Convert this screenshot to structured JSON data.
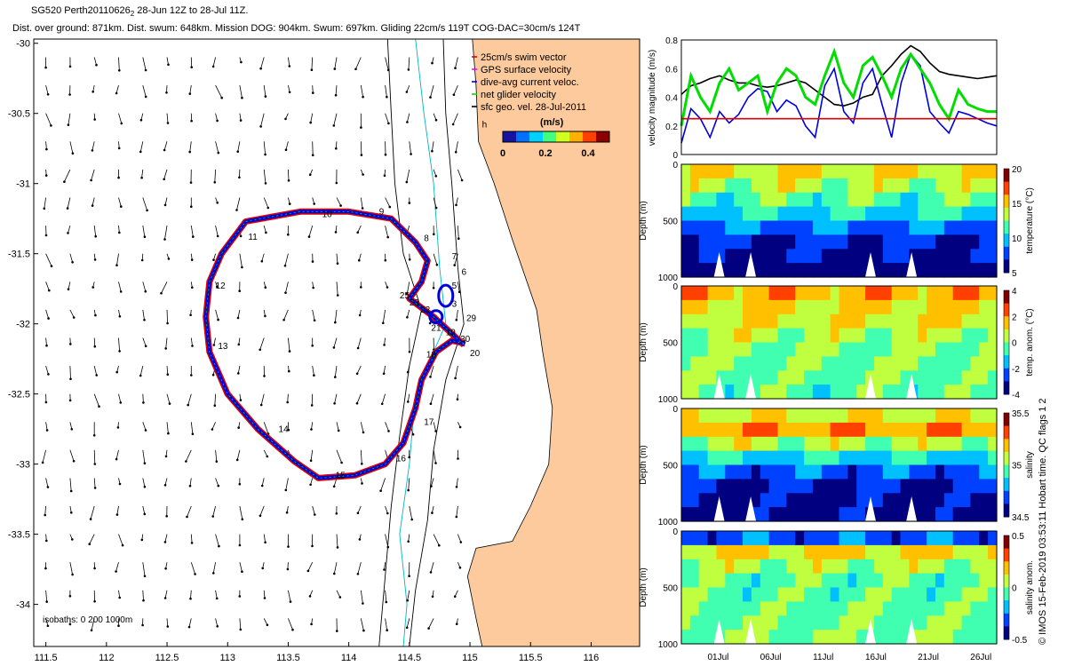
{
  "header": {
    "line1_main": "SG520 Perth20110626",
    "line1_sub": "2",
    "line1_rest": " 28-Jun 12Z to 28-Jul 11Z.",
    "line2": "Dist. over ground: 871km. Dist. swum: 648km. Mission DOG: 904km. Swum: 697km. Gliding 22cm/s 119T COG-DAC=30cm/s 124T"
  },
  "side_note": "© IMOS 15-Feb-2019 03:53:11 Hobart time. QC flags 1  2",
  "colors": {
    "land": "#fcca9c",
    "swim": "#e00000",
    "gps": "#ff00ff",
    "dac": "#0000dd",
    "net": "#00dd00",
    "geo": "#000000",
    "isobath_shallow": "#00b4c8"
  },
  "chart_data": [
    {
      "id": "map",
      "type": "scatter",
      "xlim": [
        111.4,
        116.4
      ],
      "ylim": [
        -34.3,
        -29.97
      ],
      "xticks": [
        111.5,
        112,
        112.5,
        113,
        113.5,
        114,
        114.5,
        115,
        115.5,
        116
      ],
      "yticks": [
        -30,
        -30.5,
        -31,
        -31.5,
        -32,
        -32.5,
        -33,
        -33.5,
        -34
      ],
      "legend": {
        "items": [
          {
            "label": "25cm/s swim vector",
            "color": "#e00000"
          },
          {
            "label": "GPS surface velocity",
            "color": "#ff00ff"
          },
          {
            "label": "dive-avg current veloc.",
            "color": "#0000dd"
          },
          {
            "label": "net glider velocity",
            "color": "#00dd00"
          },
          {
            "label": "sfc geo. vel. 28-Jul-2011",
            "color": "#000000"
          }
        ],
        "unit": "(m/s)",
        "colorbar_ticks": [
          "0",
          "0.2",
          "0.4"
        ],
        "colorbar_range": [
          0,
          0.5
        ]
      },
      "isobath_label": "isobaths: 0   200   1000m",
      "time_marker": "h",
      "track": [
        [
          114.95,
          -32.15
        ],
        [
          114.7,
          -31.95
        ],
        [
          114.5,
          -31.82
        ],
        [
          114.6,
          -31.7
        ],
        [
          114.65,
          -31.55
        ],
        [
          114.55,
          -31.42
        ],
        [
          114.35,
          -31.25
        ],
        [
          114.0,
          -31.2
        ],
        [
          113.6,
          -31.2
        ],
        [
          113.15,
          -31.27
        ],
        [
          112.95,
          -31.5
        ],
        [
          112.85,
          -31.7
        ],
        [
          112.82,
          -31.95
        ],
        [
          112.85,
          -32.2
        ],
        [
          113.0,
          -32.5
        ],
        [
          113.25,
          -32.75
        ],
        [
          113.55,
          -32.98
        ],
        [
          113.75,
          -33.1
        ],
        [
          114.05,
          -33.08
        ],
        [
          114.3,
          -33.0
        ],
        [
          114.45,
          -32.85
        ],
        [
          114.55,
          -32.6
        ],
        [
          114.6,
          -32.4
        ],
        [
          114.72,
          -32.2
        ],
        [
          114.85,
          -32.12
        ],
        [
          114.96,
          -32.14
        ]
      ],
      "day_labels": [
        {
          "t": "3",
          "x": 114.85,
          "y": -31.88
        },
        {
          "t": "5",
          "x": 114.85,
          "y": -31.75
        },
        {
          "t": "6",
          "x": 114.93,
          "y": -31.65
        },
        {
          "t": "7",
          "x": 114.85,
          "y": -31.54
        },
        {
          "t": "8",
          "x": 114.62,
          "y": -31.41
        },
        {
          "t": "9",
          "x": 114.25,
          "y": -31.22
        },
        {
          "t": "10",
          "x": 113.78,
          "y": -31.24
        },
        {
          "t": "11",
          "x": 113.17,
          "y": -31.4
        },
        {
          "t": "12",
          "x": 112.9,
          "y": -31.75
        },
        {
          "t": "13",
          "x": 112.92,
          "y": -32.18
        },
        {
          "t": "14",
          "x": 113.42,
          "y": -32.77
        },
        {
          "t": "15",
          "x": 113.89,
          "y": -33.1
        },
        {
          "t": "16",
          "x": 114.39,
          "y": -32.98
        },
        {
          "t": "17",
          "x": 114.62,
          "y": -32.72
        },
        {
          "t": "18",
          "x": 114.64,
          "y": -32.24
        },
        {
          "t": "19",
          "x": 114.8,
          "y": -32.08
        },
        {
          "t": "20",
          "x": 115.0,
          "y": -32.23
        },
        {
          "t": "21",
          "x": 114.68,
          "y": -32.05
        },
        {
          "t": "22",
          "x": 114.59,
          "y": -31.92
        },
        {
          "t": "23",
          "x": 114.5,
          "y": -31.87
        },
        {
          "t": "25",
          "x": 114.42,
          "y": -31.82
        },
        {
          "t": "29",
          "x": 114.97,
          "y": -31.98
        },
        {
          "t": "30",
          "x": 114.92,
          "y": -32.13
        }
      ]
    },
    {
      "id": "velocity",
      "type": "line",
      "ylabel": "velocity magnitude (m/s)",
      "ylim": [
        0,
        0.8
      ],
      "yticks": [
        "0",
        "0.2",
        "0.4",
        "0.6",
        "0.8"
      ],
      "series": [
        {
          "name": "geostrophic",
          "color": "#000000",
          "values": [
            0.42,
            0.48,
            0.5,
            0.53,
            0.55,
            0.52,
            0.5,
            0.5,
            0.48,
            0.47,
            0.48,
            0.5,
            0.52,
            0.5,
            0.45,
            0.4,
            0.35,
            0.34,
            0.36,
            0.4,
            0.42,
            0.55,
            0.62,
            0.7,
            0.76,
            0.72,
            0.64,
            0.58,
            0.56,
            0.55,
            0.54,
            0.53,
            0.54,
            0.55
          ]
        },
        {
          "name": "dive-avg current",
          "color": "#0000dd",
          "values": [
            0.08,
            0.32,
            0.25,
            0.12,
            0.3,
            0.22,
            0.28,
            0.4,
            0.46,
            0.44,
            0.3,
            0.38,
            0.34,
            0.2,
            0.12,
            0.48,
            0.6,
            0.3,
            0.22,
            0.5,
            0.6,
            0.35,
            0.12,
            0.5,
            0.7,
            0.62,
            0.3,
            0.22,
            0.15,
            0.3,
            0.28,
            0.25,
            0.22,
            0.2
          ]
        },
        {
          "name": "net glider",
          "color": "#00dd00",
          "values": [
            0.2,
            0.55,
            0.4,
            0.3,
            0.5,
            0.6,
            0.45,
            0.5,
            0.55,
            0.3,
            0.5,
            0.6,
            0.55,
            0.4,
            0.35,
            0.55,
            0.72,
            0.5,
            0.4,
            0.62,
            0.68,
            0.55,
            0.4,
            0.6,
            0.7,
            0.6,
            0.5,
            0.35,
            0.25,
            0.45,
            0.35,
            0.32,
            0.3,
            0.3
          ]
        },
        {
          "name": "swim 25cm/s",
          "color": "#e00000",
          "values": [
            0.25,
            0.25,
            0.25,
            0.25,
            0.25,
            0.25,
            0.25,
            0.25,
            0.25,
            0.25,
            0.25,
            0.25,
            0.25,
            0.25,
            0.25,
            0.25,
            0.25,
            0.25,
            0.25,
            0.25,
            0.25,
            0.25,
            0.25,
            0.25,
            0.25,
            0.25,
            0.25,
            0.25,
            0.25,
            0.25,
            0.25,
            0.25,
            0.25,
            0.25
          ]
        }
      ]
    },
    {
      "id": "sections",
      "type": "heatmap",
      "x_dates": [
        "01Jul",
        "06Jul",
        "11Jul",
        "16Jul",
        "21Jul",
        "26Jul"
      ],
      "y_ticks": [
        "0",
        "500",
        "1000"
      ],
      "ylabel": "Depth (m)",
      "panels": [
        {
          "name": "temperature",
          "cbar_label": "temperature (°C)",
          "cbar_ticks": [
            "20",
            "15",
            "10",
            "5"
          ],
          "colormap": [
            "#000080",
            "#0040ff",
            "#00c0ff",
            "#40ffb0",
            "#c0ff40",
            "#ffc000",
            "#ff4000",
            "#800000"
          ],
          "profile": [
            0.62,
            0.55,
            0.45,
            0.35,
            0.22,
            0.14,
            0.08,
            0.04
          ]
        },
        {
          "name": "temp. anom.",
          "cbar_label": "temp. anom. (°C)",
          "cbar_ticks": [
            "4",
            "2",
            "0",
            "-2",
            "-4"
          ],
          "colormap": [
            "#000080",
            "#0040ff",
            "#00c0ff",
            "#40ffb0",
            "#c0ff40",
            "#ffc000",
            "#ff4000",
            "#800000"
          ],
          "profile": [
            0.7,
            0.65,
            0.6,
            0.55,
            0.5,
            0.48,
            0.46,
            0.45
          ]
        },
        {
          "name": "salinity",
          "cbar_label": "salinity",
          "cbar_ticks": [
            "35.5",
            "35",
            "34.5"
          ],
          "colormap": [
            "#000080",
            "#0040ff",
            "#00c0ff",
            "#40ffb0",
            "#c0ff40",
            "#ffc000",
            "#ff4000",
            "#800000"
          ],
          "profile": [
            0.6,
            0.72,
            0.55,
            0.35,
            0.2,
            0.12,
            0.08,
            0.06
          ]
        },
        {
          "name": "salinity anom.",
          "cbar_label": "salinity anom.",
          "cbar_ticks": [
            "0.5",
            "0",
            "-0.5"
          ],
          "colormap": [
            "#000080",
            "#0040ff",
            "#00c0ff",
            "#40ffb0",
            "#c0ff40",
            "#ffc000",
            "#ff4000",
            "#800000"
          ],
          "profile": [
            0.2,
            0.65,
            0.55,
            0.45,
            0.45,
            0.46,
            0.47,
            0.5
          ]
        }
      ]
    }
  ]
}
